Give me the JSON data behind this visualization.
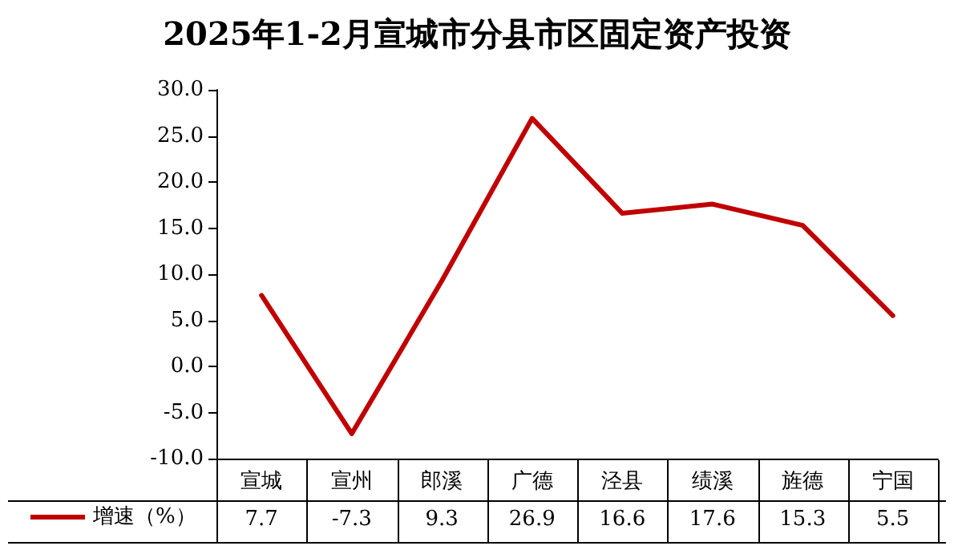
{
  "chart_data": {
    "type": "line",
    "title": "2025年1-2月宣城市分县市区固定资产投资",
    "categories": [
      "宣城",
      "宣州",
      "郎溪",
      "广德",
      "泾县",
      "绩溪",
      "旌德",
      "宁国"
    ],
    "series": [
      {
        "name": "增速（%）",
        "color": "#c00000",
        "values": [
          7.7,
          -7.3,
          9.3,
          26.9,
          16.6,
          17.6,
          15.3,
          5.5
        ]
      }
    ],
    "ylim": [
      -10,
      30
    ],
    "yticks": [
      {
        "value": -10,
        "label": "-10.0"
      },
      {
        "value": -5,
        "label": "-5.0"
      },
      {
        "value": 0,
        "label": "0.0"
      },
      {
        "value": 5,
        "label": "5.0"
      },
      {
        "value": 10,
        "label": "10.0"
      },
      {
        "value": 15,
        "label": "15.0"
      },
      {
        "value": 20,
        "label": "20.0"
      },
      {
        "value": 25,
        "label": "25.0"
      },
      {
        "value": 30,
        "label": "30.0"
      }
    ],
    "data_labels": true,
    "legend": "bottom left",
    "marker": "none",
    "line_style": "solid"
  }
}
